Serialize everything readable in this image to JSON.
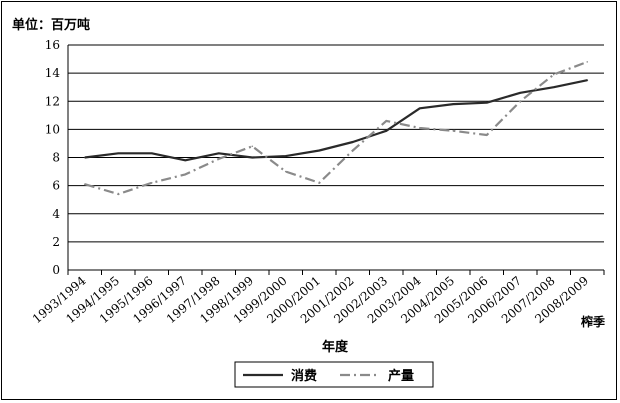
{
  "chart_data": {
    "type": "line",
    "unit_label": "单位：百万吨",
    "xlabel": "年度",
    "x_end_label": "榨季",
    "ylim": [
      0,
      16
    ],
    "y_ticks": [
      0,
      2,
      4,
      6,
      8,
      10,
      12,
      14,
      16
    ],
    "categories": [
      "1993/1994",
      "1994/1995",
      "1995/1996",
      "1996/1997",
      "1997/1998",
      "1998/1999",
      "1999/2000",
      "2000/2001",
      "2001/2002",
      "2002/2003",
      "2003/2004",
      "2004/2005",
      "2005/2006",
      "2006/2007",
      "2007/2008",
      "2008/2009"
    ],
    "series": [
      {
        "name": "消费",
        "style": "solid",
        "color": "#2a2a2a",
        "values": [
          8.0,
          8.3,
          8.3,
          7.8,
          8.3,
          8.0,
          8.1,
          8.5,
          9.1,
          9.9,
          11.5,
          11.8,
          11.9,
          12.6,
          13.0,
          13.5
        ]
      },
      {
        "name": "产量",
        "style": "dashdot",
        "color": "#8a8a8a",
        "values": [
          6.1,
          5.4,
          6.2,
          6.8,
          7.9,
          8.8,
          7.0,
          6.2,
          8.5,
          10.6,
          10.1,
          9.9,
          9.6,
          12.0,
          13.9,
          14.8
        ]
      }
    ],
    "grid": true,
    "legend_position": "bottom-center"
  }
}
